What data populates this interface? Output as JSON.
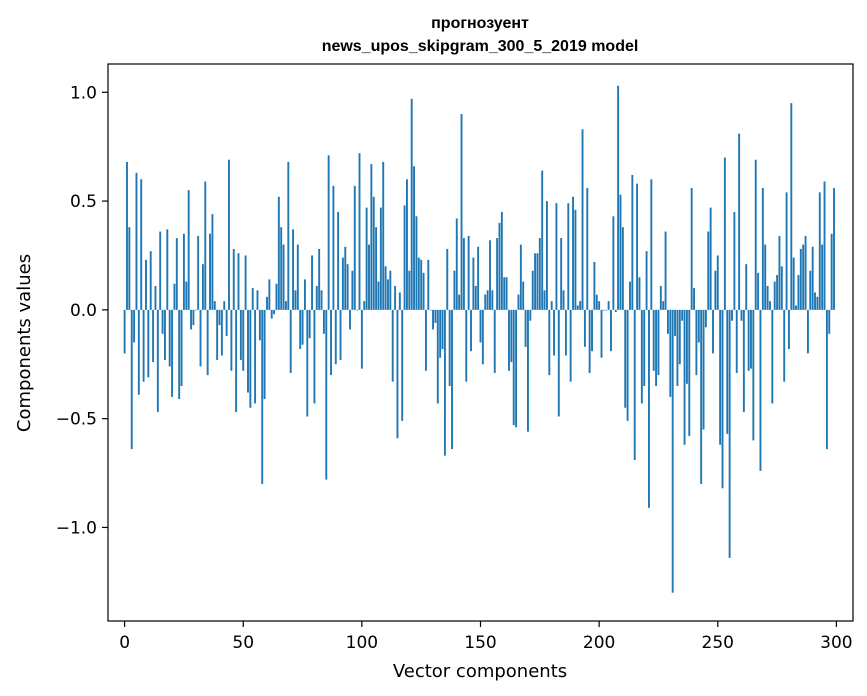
{
  "chart_data": {
    "type": "bar",
    "title_line1": "прогнозуент",
    "title_line2": "news_upos_skipgram_300_5_2019 model",
    "xlabel": "Vector components",
    "ylabel": "Components values",
    "xlim": [
      -7,
      307
    ],
    "ylim": [
      -1.43,
      1.13
    ],
    "x_ticks": [
      0,
      50,
      100,
      150,
      200,
      250,
      300
    ],
    "x_tick_labels": [
      "0",
      "50",
      "100",
      "150",
      "200",
      "250",
      "300"
    ],
    "y_ticks": [
      -1.0,
      -0.5,
      0.0,
      0.5,
      1.0
    ],
    "y_tick_labels": [
      "−1.0",
      "−0.5",
      "0.0",
      "0.5",
      "1.0"
    ],
    "bar_color": "#1f77b4",
    "values": [
      -0.2,
      0.68,
      0.38,
      -0.64,
      -0.15,
      0.63,
      -0.39,
      0.6,
      -0.33,
      0.23,
      -0.31,
      0.27,
      -0.24,
      0.11,
      -0.47,
      0.36,
      -0.11,
      -0.23,
      0.37,
      -0.26,
      -0.4,
      0.12,
      0.33,
      -0.41,
      -0.35,
      0.35,
      0.13,
      0.55,
      -0.09,
      -0.07,
      0.0,
      0.34,
      -0.26,
      0.21,
      0.59,
      -0.3,
      0.35,
      0.44,
      0.04,
      -0.23,
      -0.07,
      -0.21,
      0.04,
      -0.12,
      0.69,
      -0.28,
      0.28,
      -0.47,
      0.26,
      -0.23,
      -0.28,
      0.25,
      -0.38,
      -0.45,
      0.1,
      -0.43,
      0.09,
      -0.14,
      -0.8,
      -0.41,
      0.06,
      0.14,
      -0.04,
      -0.02,
      0.12,
      0.52,
      0.38,
      0.3,
      0.04,
      0.68,
      -0.29,
      0.37,
      0.09,
      0.3,
      -0.18,
      -0.16,
      0.14,
      -0.49,
      -0.13,
      0.25,
      -0.43,
      0.11,
      0.28,
      0.09,
      -0.11,
      -0.78,
      0.71,
      -0.3,
      0.57,
      -0.25,
      0.45,
      -0.23,
      0.24,
      0.29,
      0.21,
      -0.09,
      0.18,
      0.57,
      0.0,
      0.72,
      -0.27,
      0.04,
      0.47,
      0.3,
      0.67,
      0.52,
      0.38,
      0.13,
      0.47,
      0.68,
      0.2,
      0.14,
      0.18,
      -0.33,
      0.11,
      -0.59,
      0.08,
      -0.51,
      0.48,
      0.6,
      0.18,
      0.97,
      0.66,
      0.43,
      0.24,
      0.23,
      0.17,
      -0.28,
      0.23,
      0.0,
      -0.09,
      -0.06,
      -0.43,
      -0.22,
      -0.18,
      -0.67,
      0.28,
      -0.35,
      -0.64,
      0.18,
      0.42,
      0.07,
      0.9,
      0.33,
      -0.33,
      0.34,
      -0.19,
      0.24,
      0.11,
      0.29,
      -0.15,
      -0.25,
      0.07,
      0.09,
      0.32,
      0.09,
      -0.29,
      0.33,
      0.4,
      0.45,
      0.15,
      0.15,
      -0.28,
      -0.24,
      -0.53,
      -0.54,
      0.07,
      0.3,
      0.13,
      -0.17,
      -0.56,
      -0.05,
      0.18,
      0.26,
      0.26,
      0.33,
      0.64,
      0.09,
      0.5,
      -0.3,
      0.04,
      -0.21,
      0.49,
      -0.49,
      0.33,
      0.09,
      -0.21,
      0.49,
      -0.33,
      0.52,
      0.46,
      0.02,
      0.04,
      0.83,
      -0.17,
      0.56,
      -0.29,
      -0.19,
      0.22,
      0.07,
      0.04,
      -0.22,
      0.0,
      0.0,
      0.04,
      -0.19,
      0.43,
      -0.01,
      1.03,
      0.53,
      0.38,
      -0.45,
      -0.51,
      0.13,
      0.62,
      -0.69,
      0.58,
      0.15,
      -0.43,
      -0.35,
      0.27,
      -0.91,
      0.6,
      -0.28,
      -0.35,
      -0.3,
      0.11,
      0.04,
      0.36,
      -0.11,
      -0.4,
      -1.3,
      -0.12,
      -0.35,
      -0.25,
      -0.05,
      -0.62,
      -0.34,
      -0.58,
      0.56,
      0.1,
      -0.3,
      -0.15,
      -0.8,
      -0.55,
      -0.08,
      0.36,
      0.47,
      -0.2,
      0.18,
      0.25,
      -0.62,
      -0.82,
      0.7,
      -0.57,
      -1.14,
      -0.05,
      0.45,
      -0.29,
      0.81,
      -0.05,
      -0.47,
      0.21,
      -0.28,
      -0.27,
      -0.6,
      0.69,
      0.17,
      -0.74,
      0.56,
      0.3,
      0.11,
      0.04,
      -0.43,
      0.13,
      0.16,
      0.34,
      0.2,
      -0.33,
      0.54,
      -0.18,
      0.95,
      0.24,
      0.02,
      0.16,
      0.28,
      0.3,
      0.34,
      -0.2,
      0.18,
      0.29,
      0.08,
      0.06,
      0.54,
      0.3,
      0.59,
      -0.64,
      -0.11,
      0.35,
      0.56
    ]
  }
}
